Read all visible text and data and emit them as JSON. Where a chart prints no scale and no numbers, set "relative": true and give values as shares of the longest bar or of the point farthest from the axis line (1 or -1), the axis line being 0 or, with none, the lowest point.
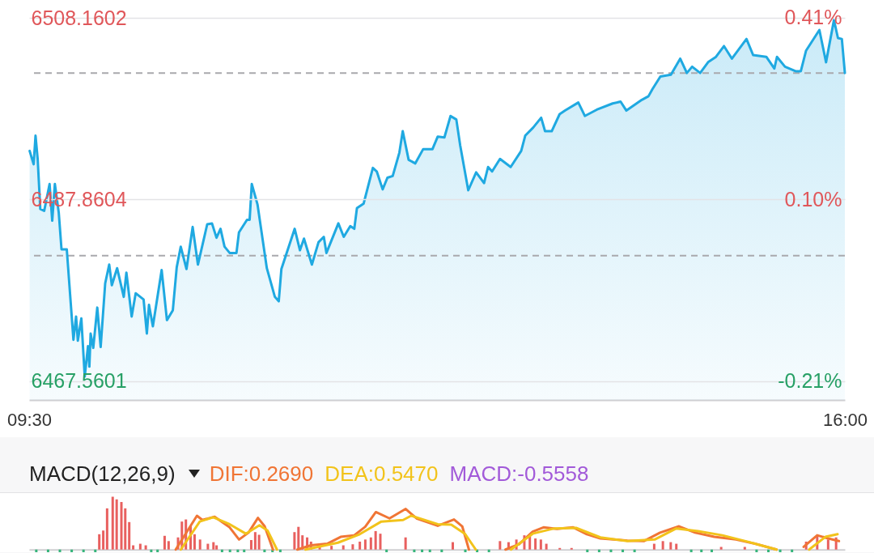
{
  "chart_data": [
    {
      "type": "area",
      "xlim": [
        9.5,
        16
      ],
      "xticks": [
        {
          "value": 9.5,
          "label": "09:30"
        },
        {
          "value": 16,
          "label": "16:00"
        }
      ],
      "ylim": [
        6465.48,
        6510.15
      ],
      "yticks": [
        6467.5601,
        6487.8604,
        6508.1602
      ],
      "y2lim": [
        -0.242,
        0.44
      ],
      "y2ticks": [
        {
          "value": -0.21,
          "label": "-0.21%"
        },
        {
          "value": 0.1,
          "label": "0.10%"
        },
        {
          "value": 0.41,
          "label": "0.41%"
        }
      ],
      "grid": "y",
      "ref_lines": [
        {
          "axis": "y",
          "value": 6502.0,
          "line_style": "dashed",
          "color": "#a9a9ad"
        },
        {
          "axis": "y",
          "value": 6481.6,
          "line_style": "dashed",
          "color": "#a9a9ad"
        }
      ],
      "x": [
        9.504,
        9.536,
        9.551,
        9.568,
        9.589,
        9.62,
        9.663,
        9.684,
        9.705,
        9.736,
        9.758,
        9.8,
        9.853,
        9.874,
        9.888,
        9.916,
        9.943,
        9.969,
        9.98,
        9.99,
        10.011,
        10.043,
        10.07,
        10.106,
        10.138,
        10.159,
        10.201,
        10.254,
        10.275,
        10.317,
        10.349,
        10.412,
        10.438,
        10.455,
        10.486,
        10.556,
        10.598,
        10.645,
        10.676,
        10.708,
        10.754,
        10.803,
        10.845,
        10.919,
        10.957,
        10.993,
        11.025,
        11.057,
        11.098,
        11.152,
        11.172,
        11.236,
        11.257,
        11.274,
        11.32,
        11.394,
        11.458,
        11.489,
        11.51,
        11.616,
        11.658,
        11.69,
        11.753,
        11.806,
        11.848,
        11.869,
        11.964,
        12.007,
        12.059,
        12.091,
        12.112,
        12.165,
        12.239,
        12.27,
        12.317,
        12.355,
        12.397,
        12.45,
        12.477,
        12.524,
        12.577,
        12.64,
        12.714,
        12.756,
        12.809,
        12.858,
        12.904,
        12.935,
        12.999,
        13.062,
        13.125,
        13.157,
        13.189,
        13.252,
        13.337,
        13.421,
        13.453,
        13.516,
        13.58,
        13.611,
        13.664,
        13.727,
        13.77,
        13.876,
        13.928,
        14.023,
        14.15,
        14.213,
        14.259,
        14.382,
        14.435,
        14.467,
        14.53,
        14.614,
        14.688,
        14.741,
        14.783,
        14.847,
        14.91,
        14.973,
        15.037,
        15.1,
        15.216,
        15.269,
        15.374,
        15.438,
        15.459,
        15.523,
        15.607,
        15.649,
        15.691,
        15.797,
        15.85,
        15.913,
        15.945,
        15.976,
        16
      ],
      "series": [
        {
          "color": "#1fa9e1",
          "values": [
            6493.3,
            6491.8,
            6495.0,
            6492.4,
            6486.8,
            6486.6,
            6489.6,
            6485.5,
            6489.6,
            6486.4,
            6482.3,
            6482.3,
            6472.2,
            6474.8,
            6472.1,
            6474.6,
            6468.1,
            6471.5,
            6469.2,
            6472.9,
            6471.3,
            6475.8,
            6471.4,
            6478.5,
            6480.6,
            6478.3,
            6480.2,
            6477.0,
            6479.7,
            6474.8,
            6477.4,
            6476.7,
            6472.9,
            6476.1,
            6473.7,
            6480.0,
            6474.4,
            6475.5,
            6480.3,
            6482.6,
            6480.1,
            6484.8,
            6480.6,
            6485.1,
            6485.2,
            6483.6,
            6484.6,
            6482.6,
            6481.9,
            6481.9,
            6484.2,
            6485.6,
            6485.6,
            6489.6,
            6487.3,
            6480.2,
            6477.0,
            6476.5,
            6480.1,
            6484.6,
            6482.2,
            6483.5,
            6480.6,
            6483.1,
            6483.7,
            6481.9,
            6485.2,
            6483.7,
            6484.9,
            6484.6,
            6486.9,
            6487.4,
            6491.4,
            6491.0,
            6489.0,
            6490.3,
            6490.5,
            6493.1,
            6495.5,
            6492.3,
            6491.9,
            6493.5,
            6493.5,
            6494.9,
            6494.8,
            6497.2,
            6496.8,
            6493.9,
            6488.9,
            6490.9,
            6489.7,
            6491.5,
            6491.0,
            6492.4,
            6491.5,
            6493.3,
            6495.0,
            6495.9,
            6497.0,
            6495.5,
            6495.5,
            6497.4,
            6497.8,
            6498.7,
            6497.2,
            6497.9,
            6498.6,
            6498.8,
            6497.8,
            6499.0,
            6499.4,
            6500.2,
            6501.6,
            6501.8,
            6503.6,
            6502.0,
            6502.7,
            6502.0,
            6503.2,
            6503.8,
            6505.0,
            6503.6,
            6505.8,
            6504.0,
            6503.8,
            6502.5,
            6503.8,
            6502.7,
            6502.2,
            6502.2,
            6504.5,
            6506.8,
            6503.2,
            6507.9,
            6505.9,
            6505.8,
            6502.0
          ]
        }
      ]
    },
    {
      "type": "bar",
      "title": "MACD(12,26,9)",
      "relative": true,
      "xlim": [
        9.5,
        16
      ],
      "legend": "top left",
      "annotations": [
        "MACD:-0.5558"
      ],
      "series": [
        {
          "x": [
            9.525,
            9.62,
            9.715,
            9.81,
            9.905,
            10.0,
            10.032,
            10.064,
            10.095,
            10.14,
            10.172,
            10.21,
            10.241,
            10.273,
            10.305,
            10.362,
            10.406,
            10.45,
            10.501,
            10.558,
            10.59,
            10.666,
            10.697,
            10.729,
            10.767,
            10.799,
            10.843,
            10.906,
            10.951,
            10.976,
            11.02,
            11.084,
            11.147,
            11.198,
            11.255,
            11.287,
            11.318,
            11.362,
            11.426,
            11.489,
            11.603,
            11.635,
            11.667,
            11.705,
            11.736,
            11.806,
            11.901,
            11.996,
            12.072,
            12.129,
            12.173,
            12.218,
            12.256,
            12.294,
            12.344,
            12.497,
            12.567,
            12.63,
            12.693,
            12.788,
            12.877,
            12.978,
            13.073,
            13.168,
            13.257,
            13.326,
            13.389,
            13.453,
            13.497,
            13.542,
            13.586,
            13.63,
            13.738,
            13.833,
            13.96,
            14.055,
            14.15,
            14.245,
            14.34,
            14.498,
            14.568,
            14.631,
            14.676,
            14.796,
            14.878,
            14.961,
            15.037,
            15.227,
            15.322,
            15.417,
            15.512,
            15.607,
            15.721,
            15.81,
            15.898,
            15.962
          ],
          "values": [
            -0.05,
            -0.05,
            -0.05,
            -0.05,
            -0.05,
            -0.05,
            0.29,
            0.36,
            0.78,
            1,
            0.95,
            0.9,
            0.78,
            0.52,
            0.08,
            0.11,
            0.08,
            -0.05,
            -0.05,
            0.26,
            0.16,
            0.23,
            0.53,
            0.57,
            0.45,
            0.29,
            0.19,
            0.11,
            0.14,
            0.08,
            -0.05,
            -0.05,
            -0.05,
            -0.05,
            0.18,
            0.33,
            0.28,
            -0.05,
            -0.05,
            -0.05,
            0.33,
            0.43,
            0.27,
            0.23,
            0.15,
            0.06,
            0.07,
            0.08,
            0.1,
            0.15,
            0.19,
            0.23,
            0.35,
            0.3,
            -0.05,
            0.23,
            -0.05,
            -0.05,
            -0.05,
            -0.05,
            0.14,
            -0.05,
            -0.05,
            -0.05,
            0.16,
            0.14,
            0.19,
            0.27,
            0.29,
            0.21,
            0.19,
            0.11,
            0.03,
            0.03,
            -0.05,
            -0.05,
            -0.05,
            -0.05,
            -0.05,
            0.11,
            0.16,
            0.14,
            0.11,
            -0.05,
            -0.05,
            -0.05,
            0.05,
            0.05,
            -0.05,
            -0.05,
            -0.05,
            -0.05,
            0.15,
            0.27,
            0.19,
            0.23
          ],
          "colors": [
            "#35b47a",
            "#35b47a",
            "#35b47a",
            "#35b47a",
            "#35b47a",
            "#35b47a",
            "#e8605f",
            "#e8605f",
            "#e8605f",
            "#e8605f",
            "#e8605f",
            "#e8605f",
            "#e8605f",
            "#e8605f",
            "#e8605f",
            "#e8605f",
            "#e8605f",
            "#35b47a",
            "#35b47a",
            "#e8605f",
            "#e8605f",
            "#e8605f",
            "#e8605f",
            "#e8605f",
            "#e8605f",
            "#e8605f",
            "#e8605f",
            "#e8605f",
            "#e8605f",
            "#e8605f",
            "#35b47a",
            "#35b47a",
            "#35b47a",
            "#35b47a",
            "#e8605f",
            "#e8605f",
            "#e8605f",
            "#35b47a",
            "#35b47a",
            "#35b47a",
            "#e8605f",
            "#e8605f",
            "#e8605f",
            "#e8605f",
            "#e8605f",
            "#e8605f",
            "#e8605f",
            "#e8605f",
            "#e8605f",
            "#e8605f",
            "#e8605f",
            "#e8605f",
            "#e8605f",
            "#e8605f",
            "#35b47a",
            "#e8605f",
            "#35b47a",
            "#35b47a",
            "#35b47a",
            "#35b47a",
            "#e8605f",
            "#35b47a",
            "#35b47a",
            "#35b47a",
            "#e8605f",
            "#e8605f",
            "#e8605f",
            "#e8605f",
            "#e8605f",
            "#e8605f",
            "#e8605f",
            "#e8605f",
            "#e8605f",
            "#e8605f",
            "#35b47a",
            "#35b47a",
            "#35b47a",
            "#35b47a",
            "#35b47a",
            "#e8605f",
            "#e8605f",
            "#e8605f",
            "#e8605f",
            "#35b47a",
            "#35b47a",
            "#35b47a",
            "#e8605f",
            "#e8605f",
            "#35b47a",
            "#35b47a",
            "#35b47a",
            "#35b47a",
            "#e8605f",
            "#e8605f",
            "#e8605f",
            "#e8605f"
          ]
        },
        {
          "name": "DIF:0.2690",
          "type": "line",
          "color": "#f07535",
          "x": [
            10.647,
            10.818,
            10.862,
            10.96,
            11.081,
            11.157,
            11.233,
            11.309,
            11.363,
            11.43,
            11.5,
            11.626,
            11.735,
            11.866,
            11.975,
            12.084,
            12.172,
            12.258,
            12.368,
            12.498,
            12.585,
            12.756,
            12.887,
            12.953,
            13.007,
            13.15,
            13.301,
            13.411,
            13.52,
            13.607,
            13.716,
            13.846,
            13.956,
            14.065,
            14.283,
            14.414,
            14.545,
            14.698,
            14.828,
            14.981,
            15.156,
            15.309,
            15.483,
            15.58,
            15.701,
            15.81,
            15.898,
            15.985
          ],
          "values": [
            0,
            0.64,
            0.56,
            0.62,
            0.42,
            0.19,
            0.32,
            0.6,
            0.44,
            0,
            null,
            0,
            0.08,
            0.11,
            0.24,
            0.27,
            0.43,
            0.71,
            0.59,
            0.77,
            0.59,
            0.45,
            0.57,
            0.44,
            0,
            null,
            0,
            0.1,
            0.34,
            0.42,
            0.39,
            0.42,
            0.29,
            0.21,
            0.17,
            0.16,
            0.32,
            0.44,
            0.32,
            0.24,
            0.19,
            0.11,
            0,
            null,
            0.05,
            0.27,
            0.21,
            0.16
          ]
        },
        {
          "name": "DEA:0.5470",
          "type": "line",
          "color": "#f2c31b",
          "x": [
            10.688,
            10.841,
            10.949,
            11.081,
            11.211,
            11.321,
            11.386,
            11.462,
            11.6,
            11.691,
            11.953,
            12.128,
            12.302,
            12.477,
            12.542,
            12.756,
            12.865,
            12.974,
            13.062,
            13.2,
            13.345,
            13.52,
            13.694,
            13.869,
            14.065,
            14.283,
            14.502,
            14.676,
            14.851,
            15.047,
            15.265,
            15.483,
            15.6,
            15.745,
            15.876,
            15.974
          ],
          "values": [
            0,
            0.53,
            0.61,
            0.48,
            0.3,
            0.46,
            0.36,
            0,
            null,
            0,
            0.13,
            0.29,
            0.53,
            0.56,
            0.64,
            0.48,
            0.47,
            0.3,
            0,
            null,
            0,
            0.3,
            0.4,
            0.41,
            0.23,
            0.16,
            0.19,
            0.4,
            0.35,
            0.27,
            0.14,
            0,
            null,
            0,
            0.24,
            0.29
          ]
        }
      ]
    }
  ]
}
